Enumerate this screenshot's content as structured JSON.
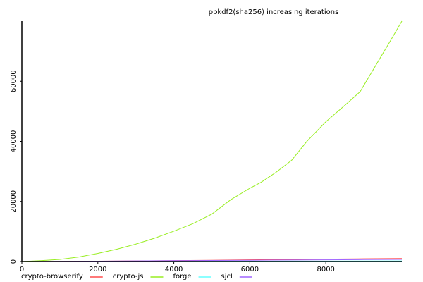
{
  "chart_data": {
    "type": "line",
    "title": "pbkdf2(sha256) increasing iterations",
    "xlabel": "",
    "ylabel": "",
    "xlim": [
      0,
      10000
    ],
    "ylim": [
      0,
      80000
    ],
    "x_ticks": [
      0,
      2000,
      4000,
      6000,
      8000
    ],
    "y_ticks": [
      0,
      20000,
      40000,
      60000
    ],
    "grid": false,
    "legend_position": "bottom-left",
    "series": [
      {
        "name": "crypto-browserify",
        "color": "#ff4d4d",
        "x": [
          1,
          1000,
          2000,
          3000,
          4000,
          5000,
          6000,
          7000,
          8000,
          9000,
          10000
        ],
        "y": [
          0,
          50,
          120,
          200,
          300,
          420,
          550,
          680,
          800,
          900,
          1000
        ]
      },
      {
        "name": "crypto-js",
        "color": "#99ee22",
        "x": [
          1,
          500,
          1000,
          1500,
          2000,
          2500,
          3000,
          3500,
          4000,
          4500,
          5000,
          5500,
          6000,
          6300,
          6700,
          7100,
          7500,
          8000,
          8500,
          8900,
          9300,
          9700,
          10000
        ],
        "y": [
          0,
          300,
          700,
          1500,
          2700,
          4100,
          5800,
          7800,
          10100,
          12600,
          15800,
          20600,
          24400,
          26400,
          29800,
          33700,
          40000,
          46500,
          52000,
          56500,
          65000,
          73500,
          80000
        ]
      },
      {
        "name": "forge",
        "color": "#66ffff",
        "x": [
          1,
          1000,
          2000,
          3000,
          4000,
          5000,
          6000,
          7000,
          8000,
          9000,
          10000
        ],
        "y": [
          0,
          20,
          40,
          60,
          80,
          100,
          120,
          140,
          160,
          180,
          200
        ]
      },
      {
        "name": "sjcl",
        "color": "#a066ff",
        "x": [
          1,
          1000,
          2000,
          3000,
          4000,
          5000,
          6000,
          7000,
          8000,
          9000,
          10000
        ],
        "y": [
          0,
          60,
          130,
          200,
          280,
          350,
          420,
          490,
          560,
          630,
          700
        ]
      }
    ]
  }
}
